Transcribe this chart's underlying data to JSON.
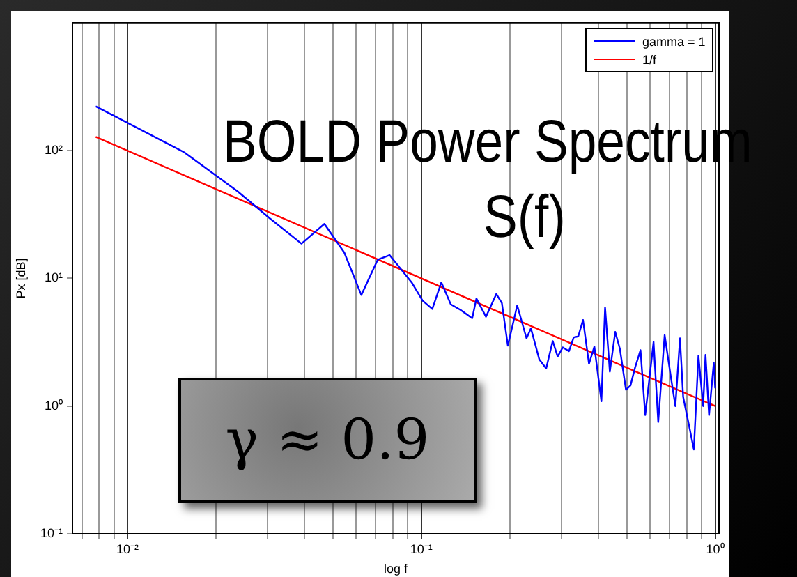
{
  "chart_data": {
    "type": "line",
    "xlabel": "log f",
    "ylabel": "Px [dB]",
    "log": "xy",
    "grid": "x",
    "legend": "top right",
    "marker": "none",
    "line_style": "solid",
    "xlim": [
      0.0065,
      1.03
    ],
    "ylim": [
      0.1,
      1000
    ],
    "xticks": [
      {
        "value": 0.007,
        "label": null
      },
      {
        "value": 0.008,
        "label": null
      },
      {
        "value": 0.009,
        "label": null
      },
      {
        "value": 0.01,
        "label": "10⁻²"
      },
      {
        "value": 0.02,
        "label": null
      },
      {
        "value": 0.03,
        "label": null
      },
      {
        "value": 0.04,
        "label": null
      },
      {
        "value": 0.05,
        "label": null
      },
      {
        "value": 0.06,
        "label": null
      },
      {
        "value": 0.07,
        "label": null
      },
      {
        "value": 0.08,
        "label": null
      },
      {
        "value": 0.09,
        "label": null
      },
      {
        "value": 0.1,
        "label": "10⁻¹"
      },
      {
        "value": 0.2,
        "label": null
      },
      {
        "value": 0.3,
        "label": null
      },
      {
        "value": 0.4,
        "label": null
      },
      {
        "value": 0.5,
        "label": null
      },
      {
        "value": 0.6,
        "label": null
      },
      {
        "value": 0.7,
        "label": null
      },
      {
        "value": 0.8,
        "label": null
      },
      {
        "value": 0.9,
        "label": null
      },
      {
        "value": 1,
        "label": "10⁰"
      }
    ],
    "yticks": [
      {
        "value": 0.1,
        "label": "10⁻¹"
      },
      {
        "value": 1,
        "label": "10⁰"
      },
      {
        "value": 10,
        "label": "10¹"
      },
      {
        "value": 100,
        "label": "10²"
      }
    ],
    "series": [
      {
        "name": "gamma = 1",
        "color": "#0000ff",
        "x": [
          0.0078,
          0.0156,
          0.0237,
          0.0305,
          0.0391,
          0.0468,
          0.0547,
          0.0625,
          0.0711,
          0.078,
          0.0927,
          0.101,
          0.109,
          0.117,
          0.126,
          0.136,
          0.149,
          0.154,
          0.166,
          0.18,
          0.188,
          0.197,
          0.212,
          0.228,
          0.236,
          0.252,
          0.266,
          0.28,
          0.291,
          0.303,
          0.318,
          0.33,
          0.342,
          0.355,
          0.372,
          0.388,
          0.41,
          0.422,
          0.438,
          0.457,
          0.474,
          0.497,
          0.515,
          0.534,
          0.557,
          0.578,
          0.617,
          0.64,
          0.673,
          0.706,
          0.732,
          0.759,
          0.778,
          0.816,
          0.846,
          0.877,
          0.91,
          0.927,
          0.953,
          0.989,
          1.0
        ],
        "values": [
          222,
          97,
          48,
          29.5,
          18.7,
          26.7,
          15.9,
          7.4,
          14.0,
          15.2,
          9.3,
          6.7,
          5.75,
          9.3,
          6.25,
          5.66,
          4.87,
          6.95,
          5.0,
          7.55,
          6.4,
          2.97,
          6.14,
          3.39,
          4.06,
          2.32,
          1.97,
          3.23,
          2.44,
          2.88,
          2.69,
          3.45,
          3.51,
          4.72,
          2.14,
          2.92,
          1.09,
          5.9,
          1.86,
          3.81,
          2.8,
          1.34,
          1.45,
          2.01,
          2.74,
          0.85,
          3.18,
          0.75,
          3.6,
          1.71,
          1.0,
          3.39,
          1.18,
          0.69,
          0.457,
          2.48,
          1.0,
          2.52,
          0.85,
          2.19,
          1.38
        ]
      },
      {
        "name": "1/f",
        "color": "#ff0000",
        "x": [
          0.0078,
          1
        ],
        "values": [
          128,
          1.0
        ]
      }
    ],
    "annotations": [
      "BOLD Power Spectrum",
      "S(f)",
      "γ ≈ 0.9"
    ]
  }
}
